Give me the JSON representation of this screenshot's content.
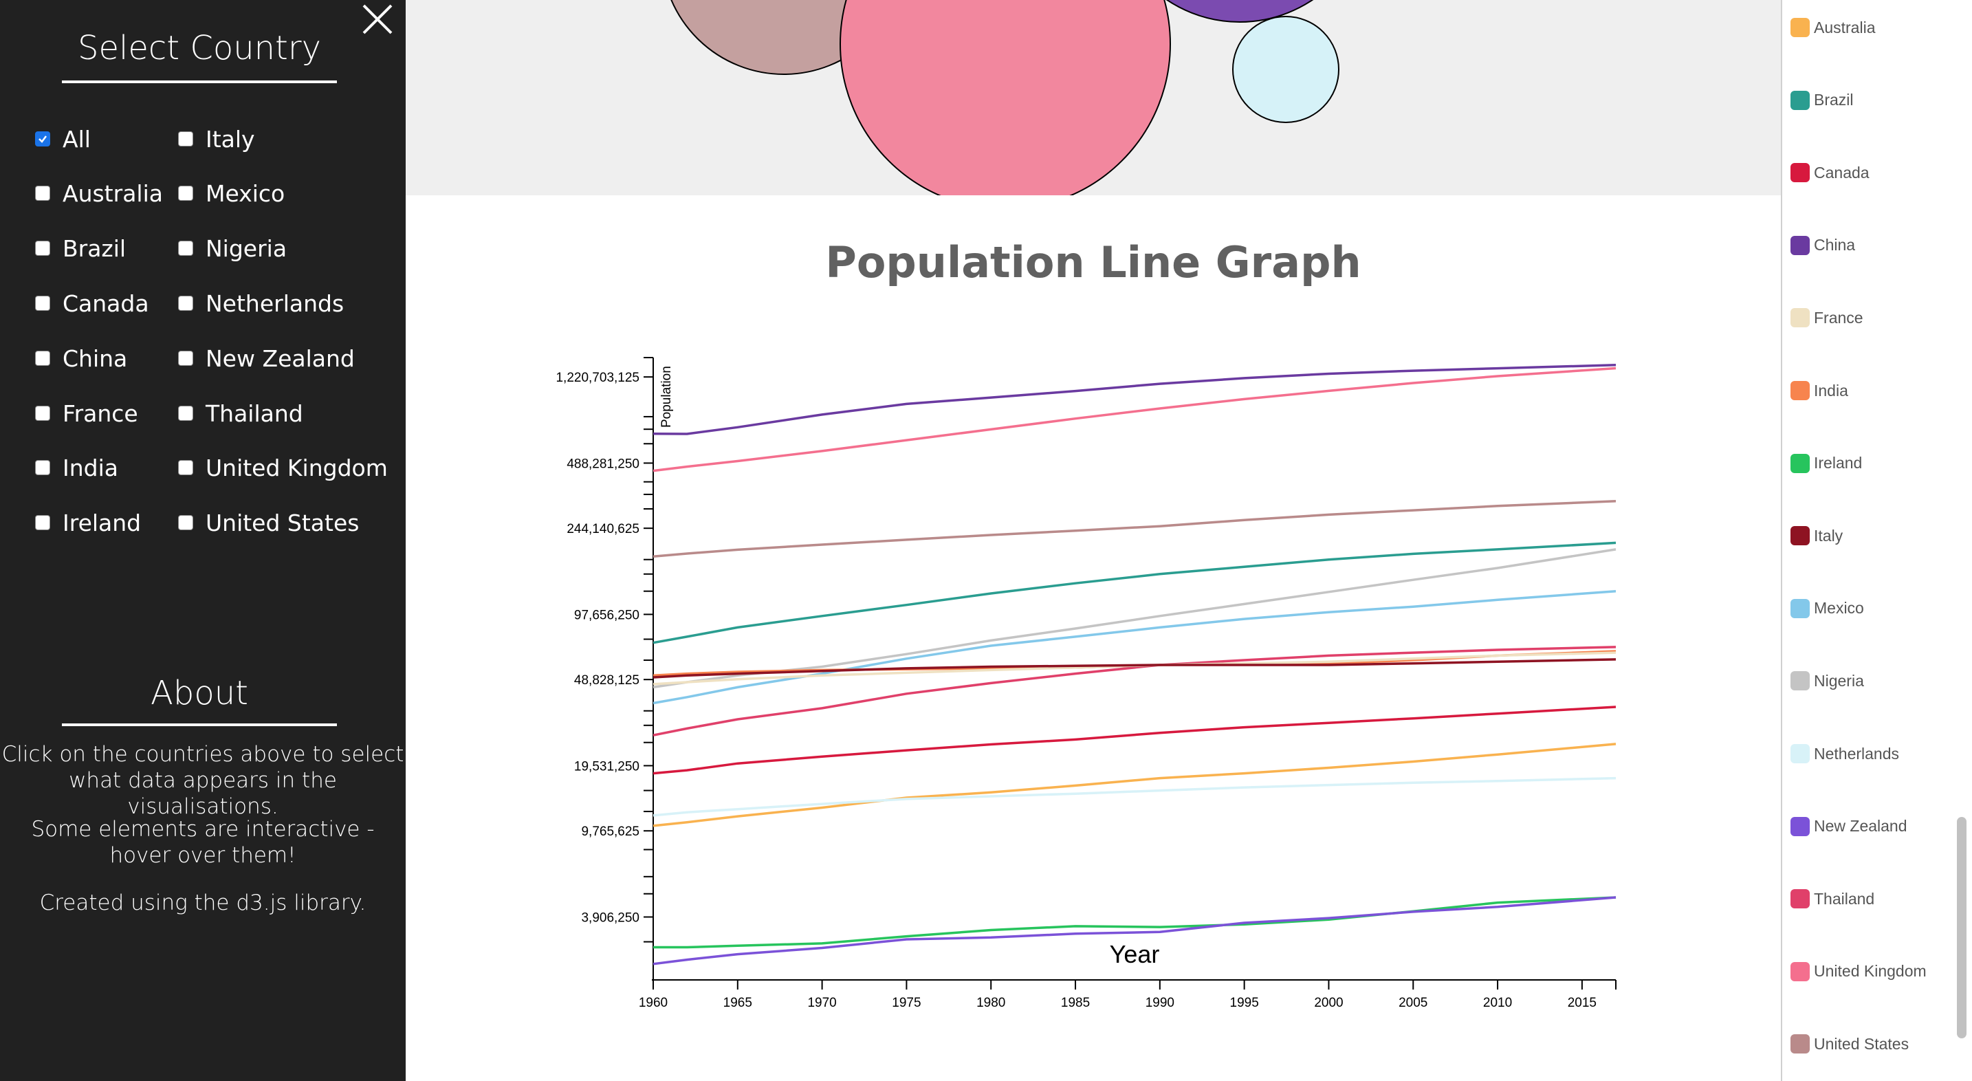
{
  "sidebar": {
    "select_title": "Select Country",
    "about_title": "About",
    "about_paragraphs": [
      "Click on the countries above to select what data appears in the visualisations.",
      "Some elements are interactive - hover over them!",
      "Created using the d3.js library."
    ],
    "checkboxes": [
      {
        "label": "All",
        "checked": true
      },
      {
        "label": "Australia",
        "checked": false
      },
      {
        "label": "Brazil",
        "checked": false
      },
      {
        "label": "Canada",
        "checked": false
      },
      {
        "label": "China",
        "checked": false
      },
      {
        "label": "France",
        "checked": false
      },
      {
        "label": "India",
        "checked": false
      },
      {
        "label": "Ireland",
        "checked": false
      },
      {
        "label": "Italy",
        "checked": false
      },
      {
        "label": "Mexico",
        "checked": false
      },
      {
        "label": "Nigeria",
        "checked": false
      },
      {
        "label": "Netherlands",
        "checked": false
      },
      {
        "label": "New Zealand",
        "checked": false
      },
      {
        "label": "Thailand",
        "checked": false
      },
      {
        "label": "United Kingdom",
        "checked": false
      },
      {
        "label": "United States",
        "checked": false
      }
    ]
  },
  "bubbles": [
    {
      "country": "United States",
      "color": "#c4a09f"
    },
    {
      "country": "United Kingdom",
      "color": "#f2879e"
    },
    {
      "country": "China",
      "color": "#7b4bb0"
    },
    {
      "country": "Netherlands",
      "color": "#d6f2f8"
    }
  ],
  "legend": [
    {
      "label": "Australia",
      "color": "#f9b24f"
    },
    {
      "label": "Brazil",
      "color": "#2a9d90"
    },
    {
      "label": "Canada",
      "color": "#d7193e"
    },
    {
      "label": "China",
      "color": "#6a3aa0"
    },
    {
      "label": "France",
      "color": "#efe1c2"
    },
    {
      "label": "India",
      "color": "#f7844e"
    },
    {
      "label": "Ireland",
      "color": "#27c45d"
    },
    {
      "label": "Italy",
      "color": "#8e1322"
    },
    {
      "label": "Mexico",
      "color": "#83c8ea"
    },
    {
      "label": "Nigeria",
      "color": "#c4c4c4"
    },
    {
      "label": "Netherlands",
      "color": "#d8f2f8"
    },
    {
      "label": "New Zealand",
      "color": "#7b52d8"
    },
    {
      "label": "Thailand",
      "color": "#e0406a"
    },
    {
      "label": "United Kingdom",
      "color": "#f46f8e"
    },
    {
      "label": "United States",
      "color": "#b98a8a"
    }
  ],
  "chart_data": {
    "type": "line",
    "title": "Population Line Graph",
    "xlabel": "Year",
    "ylabel": "Population",
    "y_scale": "log",
    "xlim": [
      1960,
      2017
    ],
    "ylim": [
      2000000,
      1500000000
    ],
    "x_ticks": [
      1960,
      1965,
      1970,
      1975,
      1980,
      1985,
      1990,
      1995,
      2000,
      2005,
      2010,
      2015
    ],
    "y_ticks": [
      {
        "value": 3906250,
        "label": "3,906,250"
      },
      {
        "value": 9765625,
        "label": "9,765,625"
      },
      {
        "value": 19531250,
        "label": "19,531,250"
      },
      {
        "value": 48828125,
        "label": "48,828,125"
      },
      {
        "value": 97656250,
        "label": "97,656,250"
      },
      {
        "value": 244140625,
        "label": "244,140,625"
      },
      {
        "value": 488281250,
        "label": "488,281,250"
      },
      {
        "value": 1220703125,
        "label": "1,220,703,125"
      }
    ],
    "minor_y_ticks": [
      3000000,
      5000000,
      6000000,
      8000000,
      12000000,
      15000000,
      25000000,
      30000000,
      35000000,
      60000000,
      75000000,
      125000000,
      150000000,
      175000000,
      300000000,
      350000000,
      400000000,
      600000000,
      700000000,
      800000000
    ],
    "x": [
      1960,
      1962,
      1965,
      1970,
      1975,
      1980,
      1985,
      1990,
      1995,
      2000,
      2005,
      2010,
      2017
    ],
    "series": [
      {
        "name": "China",
        "color": "#6a3aa0",
        "values": [
          667000000,
          666000000,
          715000000,
          818000000,
          916000000,
          981000000,
          1051000000,
          1135000000,
          1205000000,
          1263000000,
          1304000000,
          1338000000,
          1386000000
        ]
      },
      {
        "name": "India",
        "color": "#f46f8e",
        "values": [
          450000000,
          470000000,
          499000000,
          555000000,
          623000000,
          699000000,
          784000000,
          873000000,
          964000000,
          1053000000,
          1144000000,
          1231000000,
          1339000000
        ]
      },
      {
        "name": "United States",
        "color": "#b98a8a",
        "values": [
          180700000,
          186500000,
          194300000,
          205100000,
          216000000,
          227200000,
          237900000,
          249600000,
          266300000,
          282200000,
          295500000,
          309300000,
          325700000
        ]
      },
      {
        "name": "Brazil",
        "color": "#2a9d90",
        "values": [
          72200000,
          77000000,
          85000000,
          96000000,
          108000000,
          122000000,
          136000000,
          150000000,
          162000000,
          175000000,
          186000000,
          195000000,
          209000000
        ]
      },
      {
        "name": "Nigeria",
        "color": "#c4c4c4",
        "values": [
          45000000,
          47500000,
          51000000,
          56000000,
          64000000,
          74000000,
          84000000,
          96000000,
          109000000,
          124000000,
          141000000,
          160000000,
          195000000
        ]
      },
      {
        "name": "Mexico",
        "color": "#83c8ea",
        "values": [
          38000000,
          40500000,
          45000000,
          52000000,
          61000000,
          70000000,
          77000000,
          85000000,
          93000000,
          100000000,
          106000000,
          114000000,
          125000000
        ]
      },
      {
        "name": "Thailand",
        "color": "#f7844e",
        "values": [
          51000000,
          52000000,
          53000000,
          54000000,
          54500000,
          55000000,
          55500000,
          57000000,
          57500000,
          58000000,
          60000000,
          63000000,
          66000000
        ]
      },
      {
        "name": "United Kingdom",
        "color": "#e0406a",
        "values": [
          27000000,
          29000000,
          32000000,
          36000000,
          42000000,
          47000000,
          52000000,
          57000000,
          60000000,
          63000000,
          65000000,
          67000000,
          69000000
        ]
      },
      {
        "name": "France",
        "color": "#efe1c2",
        "values": [
          46500000,
          47500000,
          49000000,
          51000000,
          52500000,
          54000000,
          55500000,
          57000000,
          58000000,
          59000000,
          61000000,
          63000000,
          65000000
        ]
      },
      {
        "name": "Italy",
        "color": "#8e1322",
        "values": [
          50000000,
          51000000,
          52000000,
          53500000,
          55000000,
          56000000,
          56500000,
          57000000,
          57000000,
          57000000,
          58000000,
          59000000,
          60500000
        ]
      },
      {
        "name": "Canada",
        "color": "#d7193e",
        "values": [
          18000000,
          18600000,
          20000000,
          21500000,
          23000000,
          24500000,
          25800000,
          27700000,
          29400000,
          30800000,
          32300000,
          34000000,
          36500000
        ]
      },
      {
        "name": "Australia",
        "color": "#f9b24f",
        "values": [
          10300000,
          10700000,
          11400000,
          12500000,
          13900000,
          14700000,
          15800000,
          17100000,
          18000000,
          19100000,
          20400000,
          22000000,
          24600000
        ]
      },
      {
        "name": "Netherlands",
        "color": "#d8f2f8",
        "values": [
          11500000,
          11900000,
          12300000,
          13000000,
          13700000,
          14100000,
          14500000,
          15000000,
          15500000,
          15900000,
          16300000,
          16600000,
          17100000
        ]
      },
      {
        "name": "Ireland",
        "color": "#27c45d",
        "values": [
          2830000,
          2830000,
          2880000,
          2950000,
          3180000,
          3400000,
          3540000,
          3510000,
          3610000,
          3800000,
          4150000,
          4550000,
          4810000
        ]
      },
      {
        "name": "New Zealand",
        "color": "#7b52d8",
        "values": [
          2370000,
          2480000,
          2630000,
          2810000,
          3080000,
          3140000,
          3270000,
          3330000,
          3670000,
          3860000,
          4130000,
          4350000,
          4810000
        ]
      }
    ]
  }
}
